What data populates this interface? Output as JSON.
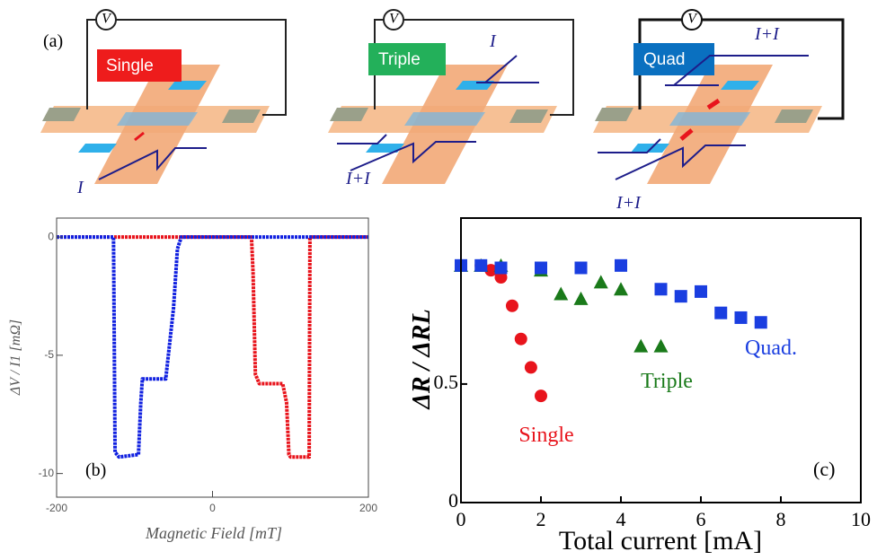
{
  "panel_a": {
    "label": "(a)",
    "diagrams": [
      {
        "name": "Single",
        "voltmeter": "V",
        "currents": [
          "I"
        ]
      },
      {
        "name": "Triple",
        "voltmeter": "V",
        "currents": [
          "I",
          "I+I"
        ]
      },
      {
        "name": "Quad",
        "voltmeter": "V",
        "currents": [
          "I+I",
          "I+I"
        ]
      }
    ]
  },
  "chart_data": [
    {
      "type": "line",
      "panel_label": "(b)",
      "x_label": "Magnetic Field  [mT]",
      "y_label": "ΔV / I1 [mΩ]",
      "xlim": [
        -200,
        200
      ],
      "ylim": [
        -11,
        0.8
      ],
      "xticks": [
        -200,
        0,
        200
      ],
      "yticks": [
        -10,
        -5,
        0
      ],
      "series": [
        {
          "color": "#e8141c",
          "x": [
            -200,
            -150,
            -100,
            -50,
            0,
            50,
            52,
            55,
            60,
            90,
            95,
            98,
            100,
            120,
            124,
            125,
            150,
            200
          ],
          "values": [
            0,
            0,
            0,
            0,
            0,
            0,
            -1.5,
            -5.8,
            -6.2,
            -6.2,
            -7,
            -9.2,
            -9.3,
            -9.3,
            -9.3,
            0,
            0,
            0
          ]
        },
        {
          "color": "#1020e0",
          "x": [
            -200,
            -150,
            -127,
            -125,
            -120,
            -95,
            -92,
            -90,
            -60,
            -55,
            -50,
            -45,
            -40,
            0,
            50,
            100,
            150,
            200
          ],
          "values": [
            0,
            0,
            0,
            -9.1,
            -9.3,
            -9.2,
            -7,
            -6,
            -6,
            -4.5,
            -3,
            -0.5,
            0,
            0,
            0,
            0,
            0,
            0
          ]
        }
      ]
    },
    {
      "type": "scatter",
      "panel_label": "(c)",
      "x_label": "Total current  [mA]",
      "y_label": "ΔR / ΔRL",
      "xlim": [
        0,
        10
      ],
      "ylim": [
        0,
        1.2
      ],
      "xticks": [
        0,
        2,
        4,
        6,
        8,
        10
      ],
      "yticks": [
        0,
        0.5
      ],
      "series": [
        {
          "name": "Single",
          "color": "#e8141c",
          "marker": "circle",
          "x": [
            0,
            0.5,
            0.75,
            1,
            1.28,
            1.5,
            1.75,
            2
          ],
          "values": [
            1,
            1,
            0.98,
            0.95,
            0.83,
            0.69,
            0.57,
            0.45
          ]
        },
        {
          "name": "Triple",
          "color": "#1a7a1a",
          "marker": "triangle",
          "x": [
            0,
            0.5,
            1,
            2,
            2.5,
            3,
            3.5,
            4,
            4.5,
            5
          ],
          "values": [
            1,
            1,
            1,
            0.98,
            0.88,
            0.86,
            0.93,
            0.9,
            0.66,
            0.66
          ]
        },
        {
          "name": "Quad.",
          "color": "#1a3ee0",
          "marker": "square",
          "x": [
            0,
            0.5,
            1,
            2,
            3,
            4,
            5,
            5.5,
            6,
            6.5,
            7,
            7.5
          ],
          "values": [
            1,
            1,
            0.99,
            0.99,
            0.99,
            1,
            0.9,
            0.87,
            0.89,
            0.8,
            0.78,
            0.76
          ]
        }
      ]
    }
  ]
}
